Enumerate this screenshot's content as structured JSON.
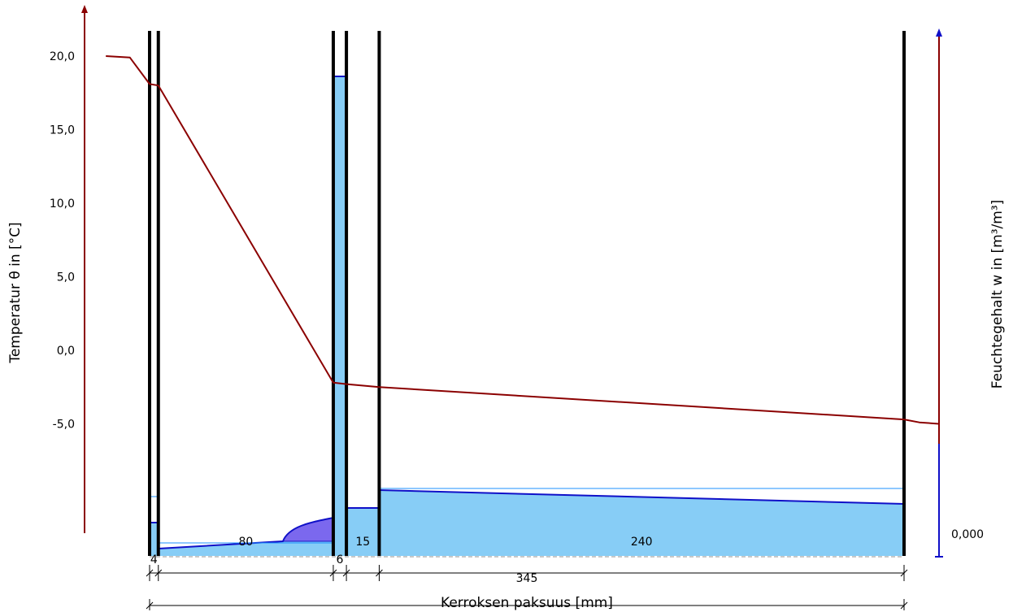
{
  "chart_data": {
    "type": "line",
    "left_axis": {
      "title": "Temperatur θ in [°C]",
      "ticks": [
        "20,0",
        "15,0",
        "10,0",
        "5,0",
        "0,0",
        "-5,0"
      ],
      "tick_values": [
        20,
        15,
        10,
        5,
        0,
        -5
      ],
      "color": "#8b0000"
    },
    "right_axis": {
      "title": "Feuchtegehalt w in [m³/m³]",
      "tick_label": "0,000",
      "color": "#1010c8"
    },
    "x_axis": {
      "title": "Kerroksen paksuus [mm]",
      "total_label": "345"
    },
    "layers": [
      {
        "thickness_mm": 4,
        "label": "4"
      },
      {
        "thickness_mm": 80,
        "label": "80"
      },
      {
        "thickness_mm": 6,
        "label": "6"
      },
      {
        "thickness_mm": 15,
        "label": "15"
      },
      {
        "thickness_mm": 240,
        "label": "240"
      }
    ],
    "temperature_series": {
      "name": "",
      "color": "#8b0000",
      "points": [
        {
          "x_mm": -20,
          "t": 20.0
        },
        {
          "x_mm": -9,
          "t": 19.9
        },
        {
          "x_mm": 0,
          "t": 18.1
        },
        {
          "x_mm": 4,
          "t": 18.0
        },
        {
          "x_mm": 84,
          "t": -2.2
        },
        {
          "x_mm": 90,
          "t": -2.3
        },
        {
          "x_mm": 105,
          "t": -2.5
        },
        {
          "x_mm": 345,
          "t": -4.7
        },
        {
          "x_mm": 352,
          "t": -4.9
        },
        {
          "x_mm": 361,
          "t": -5.0
        }
      ]
    },
    "colors": {
      "moisture_fill": "#87cdf6",
      "moisture_line": "#1010c8",
      "condensation_fill": "#7b68ee",
      "reference_line": "#1e90ff",
      "boundary": "#000000"
    }
  }
}
